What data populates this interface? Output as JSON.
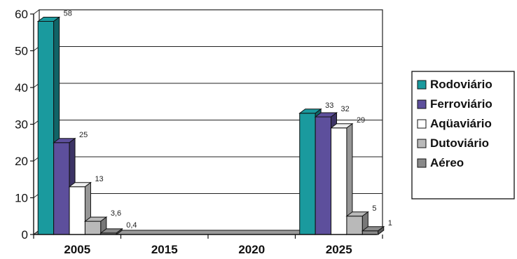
{
  "chart_data": {
    "type": "bar",
    "style": "3d-clustered-column",
    "categories": [
      "2005",
      "2015",
      "2020",
      "2025"
    ],
    "series": [
      {
        "name": "Rodoviário",
        "color": "#1a9a9e",
        "values": [
          58,
          0,
          0,
          33
        ],
        "labels": [
          "58",
          "",
          "",
          "33"
        ]
      },
      {
        "name": "Ferroviário",
        "color": "#5d4f9c",
        "values": [
          25,
          0,
          0,
          32
        ],
        "labels": [
          "25",
          "",
          "",
          "32"
        ]
      },
      {
        "name": "Aqüaviário",
        "color": "#ffffff",
        "values": [
          13,
          0,
          0,
          29
        ],
        "labels": [
          "13",
          "",
          "",
          "29"
        ]
      },
      {
        "name": "Dutoviário",
        "color": "#b9b9b9",
        "values": [
          3.6,
          0,
          0,
          5
        ],
        "labels": [
          "3,6",
          "",
          "",
          "5"
        ]
      },
      {
        "name": "Aéreo",
        "color": "#8a8a8a",
        "values": [
          0.4,
          0,
          0,
          1
        ],
        "labels": [
          "0,4",
          "",
          "",
          "1"
        ]
      }
    ],
    "yticks": [
      "0",
      "10",
      "20",
      "30",
      "40",
      "50",
      "60"
    ],
    "ylim": [
      0,
      60
    ],
    "grid": true,
    "legend": "right"
  }
}
